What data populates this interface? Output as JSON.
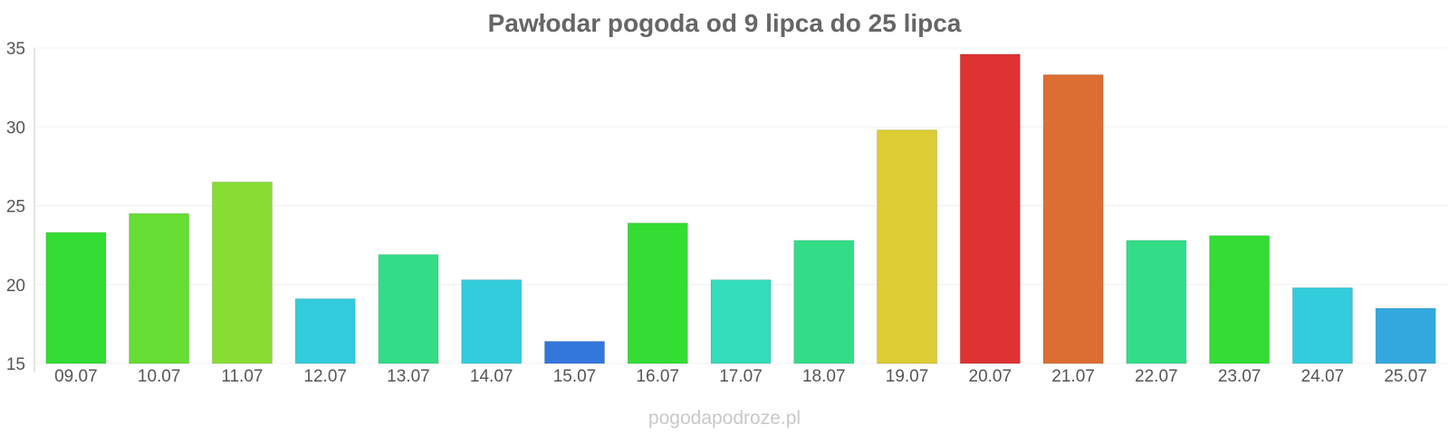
{
  "chart_data": {
    "type": "bar",
    "title": "Pawłodar pogoda od 9 lipca do 25 lipca",
    "categories": [
      "09.07",
      "10.07",
      "11.07",
      "12.07",
      "13.07",
      "14.07",
      "15.07",
      "16.07",
      "17.07",
      "18.07",
      "19.07",
      "20.07",
      "21.07",
      "22.07",
      "23.07",
      "24.07",
      "25.07"
    ],
    "values": [
      23.3,
      24.5,
      26.5,
      19.1,
      21.9,
      20.3,
      16.4,
      23.9,
      20.3,
      22.8,
      29.8,
      34.6,
      33.3,
      22.8,
      23.1,
      19.8,
      18.5
    ],
    "bar_colors": [
      "#33dd33",
      "#66dd33",
      "#88dd33",
      "#33ccdd",
      "#33dd88",
      "#33ccdd",
      "#3377dd",
      "#33dd33",
      "#33ddbb",
      "#33dd88",
      "#ddcc33",
      "#dd3333",
      "#dd6e33",
      "#33dd88",
      "#33dd33",
      "#33ccdd",
      "#33a8dd"
    ],
    "xlabel": "",
    "ylabel": "",
    "ylim": [
      15,
      35
    ],
    "yticks": [
      15,
      20,
      25,
      30,
      35
    ],
    "grid": true
  },
  "watermark": "pogodapodroze.pl"
}
